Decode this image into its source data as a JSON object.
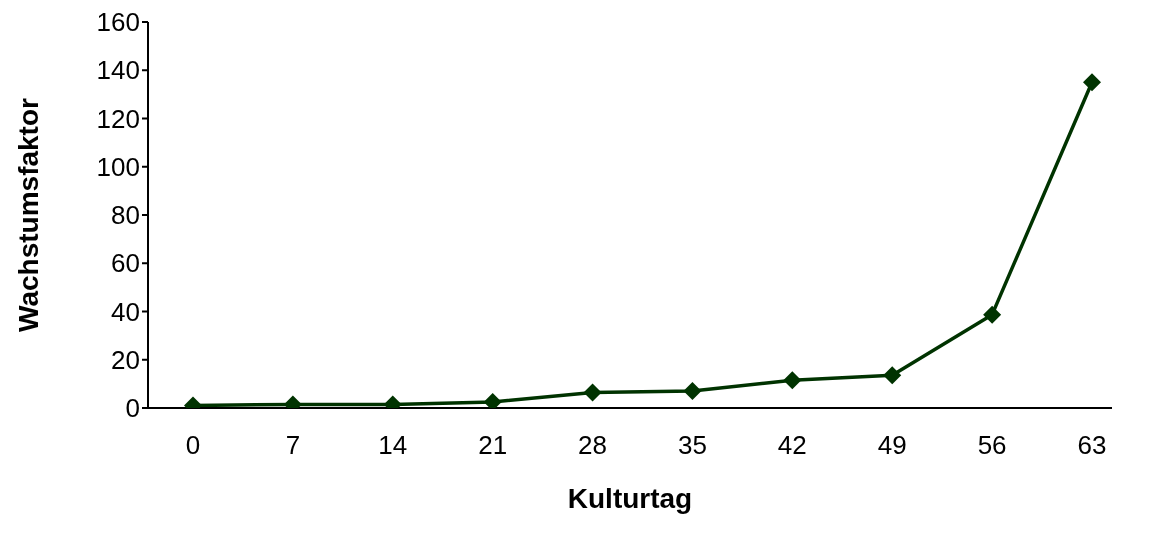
{
  "chart_data": {
    "type": "line",
    "xlabel": "Kulturtag",
    "ylabel": "Wachstumsfaktor",
    "categories": [
      "0",
      "7",
      "14",
      "21",
      "28",
      "35",
      "42",
      "49",
      "56",
      "63"
    ],
    "values": [
      1,
      1.5,
      1.5,
      2.5,
      6.4,
      7,
      11.5,
      13.6,
      38.7,
      135
    ],
    "color": "#003300",
    "marker": "diamond",
    "line_style": "solid",
    "ylim": [
      0,
      160
    ],
    "yticks": [
      0,
      20,
      40,
      60,
      80,
      100,
      120,
      140,
      160
    ],
    "grid": false
  }
}
